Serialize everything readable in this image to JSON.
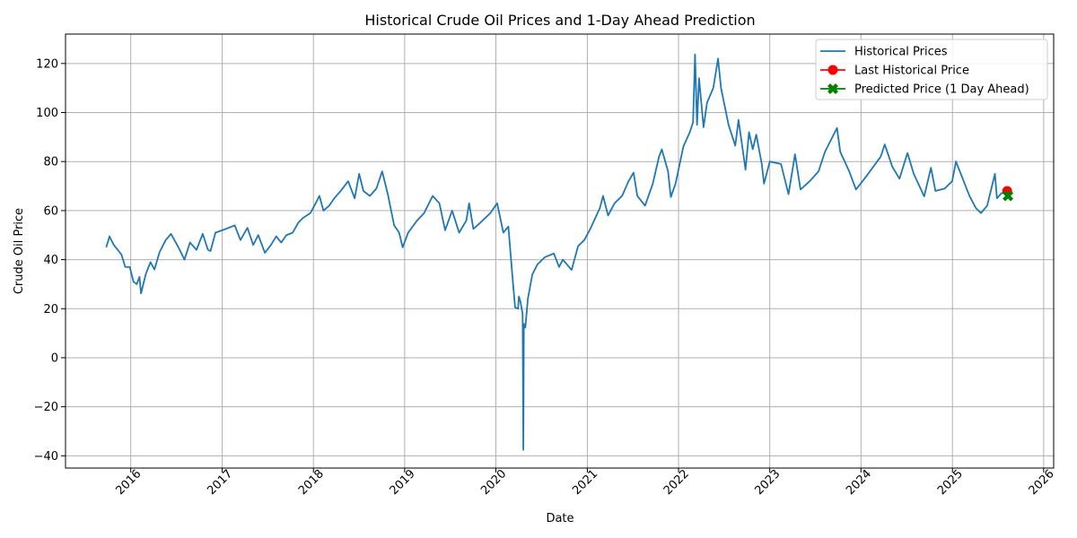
{
  "chart_data": {
    "type": "line",
    "title": "Historical Crude Oil Prices and 1-Day Ahead Prediction",
    "xlabel": "Date",
    "ylabel": "Crude Oil Price",
    "xlim": [
      "2015-04-15",
      "2026-02-10"
    ],
    "ylim": [
      -45,
      132
    ],
    "grid": true,
    "legend_position": "top-right",
    "x_ticks": [
      "2016",
      "2017",
      "2018",
      "2019",
      "2020",
      "2021",
      "2022",
      "2023",
      "2024",
      "2025",
      "2026"
    ],
    "y_ticks": [
      -40,
      -20,
      0,
      20,
      40,
      60,
      80,
      100,
      120
    ],
    "y_tick_labels": [
      "−40",
      "−20",
      "0",
      "20",
      "40",
      "60",
      "80",
      "100",
      "120"
    ],
    "series": [
      {
        "name": "Historical Prices",
        "color": "#1f77b4",
        "marker": "none",
        "points": [
          [
            "2015-09-25",
            45.0
          ],
          [
            "2015-10-08",
            49.5
          ],
          [
            "2015-10-25",
            46.0
          ],
          [
            "2015-11-10",
            44.0
          ],
          [
            "2015-11-25",
            42.0
          ],
          [
            "2015-12-10",
            37.0
          ],
          [
            "2015-12-28",
            37.0
          ],
          [
            "2016-01-12",
            31.0
          ],
          [
            "2016-01-25",
            30.0
          ],
          [
            "2016-02-05",
            33.0
          ],
          [
            "2016-02-11",
            26.2
          ],
          [
            "2016-03-01",
            34.0
          ],
          [
            "2016-03-20",
            39.0
          ],
          [
            "2016-04-05",
            36.0
          ],
          [
            "2016-04-25",
            43.0
          ],
          [
            "2016-05-20",
            48.0
          ],
          [
            "2016-06-10",
            50.5
          ],
          [
            "2016-07-10",
            45.0
          ],
          [
            "2016-08-03",
            40.0
          ],
          [
            "2016-08-25",
            47.0
          ],
          [
            "2016-09-20",
            44.0
          ],
          [
            "2016-10-15",
            50.5
          ],
          [
            "2016-11-05",
            44.0
          ],
          [
            "2016-11-15",
            43.5
          ],
          [
            "2016-12-05",
            51.0
          ],
          [
            "2017-01-15",
            52.5
          ],
          [
            "2017-02-20",
            54.0
          ],
          [
            "2017-03-15",
            48.0
          ],
          [
            "2017-04-12",
            53.0
          ],
          [
            "2017-05-05",
            46.0
          ],
          [
            "2017-05-25",
            50.0
          ],
          [
            "2017-06-21",
            42.8
          ],
          [
            "2017-07-15",
            46.0
          ],
          [
            "2017-08-05",
            49.5
          ],
          [
            "2017-08-25",
            47.0
          ],
          [
            "2017-09-15",
            50.0
          ],
          [
            "2017-10-10",
            51.0
          ],
          [
            "2017-11-01",
            55.0
          ],
          [
            "2017-11-20",
            57.0
          ],
          [
            "2017-12-20",
            59.0
          ],
          [
            "2018-01-10",
            63.0
          ],
          [
            "2018-01-25",
            66.0
          ],
          [
            "2018-02-10",
            60.0
          ],
          [
            "2018-03-05",
            62.0
          ],
          [
            "2018-03-25",
            65.0
          ],
          [
            "2018-04-20",
            68.0
          ],
          [
            "2018-05-20",
            72.0
          ],
          [
            "2018-06-15",
            65.0
          ],
          [
            "2018-07-03",
            75.0
          ],
          [
            "2018-07-20",
            68.0
          ],
          [
            "2018-08-15",
            66.0
          ],
          [
            "2018-09-10",
            69.0
          ],
          [
            "2018-10-03",
            76.0
          ],
          [
            "2018-10-25",
            67.0
          ],
          [
            "2018-11-20",
            54.0
          ],
          [
            "2018-12-10",
            51.0
          ],
          [
            "2018-12-24",
            45.0
          ],
          [
            "2019-01-15",
            51.0
          ],
          [
            "2019-02-20",
            56.0
          ],
          [
            "2019-03-20",
            59.0
          ],
          [
            "2019-04-23",
            66.0
          ],
          [
            "2019-05-20",
            63.0
          ],
          [
            "2019-06-12",
            52.0
          ],
          [
            "2019-07-10",
            60.0
          ],
          [
            "2019-08-07",
            51.0
          ],
          [
            "2019-09-05",
            56.0
          ],
          [
            "2019-09-16",
            63.0
          ],
          [
            "2019-10-03",
            52.5
          ],
          [
            "2019-10-30",
            55.0
          ],
          [
            "2019-12-10",
            59.0
          ],
          [
            "2020-01-06",
            63.0
          ],
          [
            "2020-01-31",
            51.0
          ],
          [
            "2020-02-20",
            53.5
          ],
          [
            "2020-03-09",
            31.0
          ],
          [
            "2020-03-18",
            20.5
          ],
          [
            "2020-03-30",
            20.0
          ],
          [
            "2020-04-02",
            25.0
          ],
          [
            "2020-04-08",
            23.0
          ],
          [
            "2020-04-17",
            18.0
          ],
          [
            "2020-04-20",
            -37.6
          ],
          [
            "2020-04-22",
            13.8
          ],
          [
            "2020-04-28",
            12.3
          ],
          [
            "2020-05-08",
            24.0
          ],
          [
            "2020-05-26",
            34.0
          ],
          [
            "2020-06-15",
            38.0
          ],
          [
            "2020-07-15",
            41.0
          ],
          [
            "2020-08-20",
            42.5
          ],
          [
            "2020-09-10",
            37.0
          ],
          [
            "2020-09-25",
            40.0
          ],
          [
            "2020-10-30",
            35.8
          ],
          [
            "2020-11-25",
            45.5
          ],
          [
            "2020-12-20",
            48.0
          ],
          [
            "2021-01-15",
            53.0
          ],
          [
            "2021-02-20",
            61.0
          ],
          [
            "2021-03-05",
            66.0
          ],
          [
            "2021-03-25",
            58.0
          ],
          [
            "2021-04-20",
            63.0
          ],
          [
            "2021-05-20",
            66.0
          ],
          [
            "2021-06-15",
            72.0
          ],
          [
            "2021-07-05",
            75.5
          ],
          [
            "2021-07-20",
            66.0
          ],
          [
            "2021-08-20",
            62.0
          ],
          [
            "2021-09-20",
            71.0
          ],
          [
            "2021-10-15",
            82.0
          ],
          [
            "2021-10-26",
            85.0
          ],
          [
            "2021-11-20",
            76.0
          ],
          [
            "2021-12-01",
            65.5
          ],
          [
            "2021-12-20",
            71.0
          ],
          [
            "2022-01-20",
            86.0
          ],
          [
            "2022-02-15",
            92.0
          ],
          [
            "2022-02-28",
            96.0
          ],
          [
            "2022-03-08",
            123.7
          ],
          [
            "2022-03-16",
            95.0
          ],
          [
            "2022-03-24",
            114.0
          ],
          [
            "2022-04-11",
            94.0
          ],
          [
            "2022-04-25",
            104.0
          ],
          [
            "2022-05-20",
            110.0
          ],
          [
            "2022-06-08",
            122.0
          ],
          [
            "2022-06-20",
            110.0
          ],
          [
            "2022-07-10",
            100.0
          ],
          [
            "2022-07-20",
            95.0
          ],
          [
            "2022-08-16",
            86.5
          ],
          [
            "2022-08-29",
            97.0
          ],
          [
            "2022-09-26",
            76.7
          ],
          [
            "2022-10-10",
            92.0
          ],
          [
            "2022-10-25",
            85.0
          ],
          [
            "2022-11-08",
            91.0
          ],
          [
            "2022-11-30",
            79.0
          ],
          [
            "2022-12-09",
            71.0
          ],
          [
            "2023-01-01",
            80.0
          ],
          [
            "2023-02-15",
            79.0
          ],
          [
            "2023-03-17",
            66.7
          ],
          [
            "2023-04-12",
            83.0
          ],
          [
            "2023-05-04",
            68.6
          ],
          [
            "2023-06-10",
            72.0
          ],
          [
            "2023-07-15",
            76.0
          ],
          [
            "2023-08-10",
            84.0
          ],
          [
            "2023-09-27",
            93.7
          ],
          [
            "2023-10-10",
            84.0
          ],
          [
            "2023-11-15",
            76.0
          ],
          [
            "2023-12-12",
            68.6
          ],
          [
            "2024-01-15",
            73.0
          ],
          [
            "2024-02-20",
            78.0
          ],
          [
            "2024-03-20",
            82.0
          ],
          [
            "2024-04-05",
            87.0
          ],
          [
            "2024-05-05",
            78.0
          ],
          [
            "2024-06-03",
            73.0
          ],
          [
            "2024-07-05",
            83.5
          ],
          [
            "2024-07-30",
            75.0
          ],
          [
            "2024-09-10",
            65.8
          ],
          [
            "2024-10-07",
            77.5
          ],
          [
            "2024-10-25",
            68.0
          ],
          [
            "2024-12-01",
            69.0
          ],
          [
            "2024-12-31",
            72.0
          ],
          [
            "2025-01-15",
            80.0
          ],
          [
            "2025-02-15",
            72.0
          ],
          [
            "2025-03-10",
            66.0
          ],
          [
            "2025-04-05",
            61.0
          ],
          [
            "2025-04-25",
            59.0
          ],
          [
            "2025-05-20",
            62.0
          ],
          [
            "2025-06-20",
            75.0
          ],
          [
            "2025-06-28",
            65.0
          ],
          [
            "2025-07-15",
            67.0
          ],
          [
            "2025-08-08",
            68.0
          ]
        ]
      },
      {
        "name": "Last Historical Price",
        "color": "#ff0000",
        "marker": "circle",
        "points": [
          [
            "2025-08-08",
            68.0
          ]
        ]
      },
      {
        "name": "Predicted Price (1 Day Ahead)",
        "color": "#008000",
        "marker": "X",
        "points": [
          [
            "2025-08-11",
            66.0
          ]
        ]
      }
    ]
  }
}
